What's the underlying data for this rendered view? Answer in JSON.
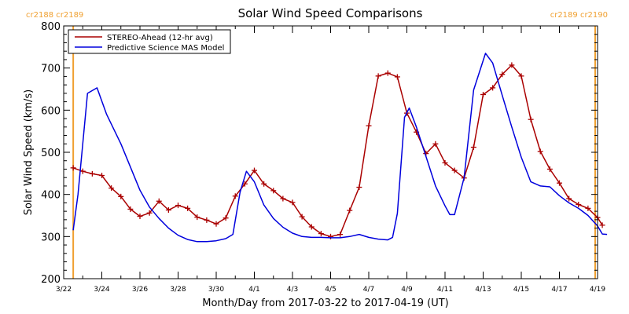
{
  "chart_data": {
    "type": "line",
    "title": "Solar Wind Speed Comparisons",
    "xlabel": "Month/Day from 2017-03-22 to 2017-04-19 (UT)",
    "ylabel": "Solar Wind Speed (km/s)",
    "xlim": [
      "2017-03-22",
      "2017-04-19"
    ],
    "ylim": [
      200,
      800
    ],
    "x_ticks": [
      {
        "label": "3/22",
        "date": "2017-03-22"
      },
      {
        "label": "3/24",
        "date": "2017-03-24"
      },
      {
        "label": "3/26",
        "date": "2017-03-26"
      },
      {
        "label": "3/28",
        "date": "2017-03-28"
      },
      {
        "label": "3/30",
        "date": "2017-03-30"
      },
      {
        "label": "4/1",
        "date": "2017-04-01"
      },
      {
        "label": "4/3",
        "date": "2017-04-03"
      },
      {
        "label": "4/5",
        "date": "2017-04-05"
      },
      {
        "label": "4/7",
        "date": "2017-04-07"
      },
      {
        "label": "4/9",
        "date": "2017-04-09"
      },
      {
        "label": "4/11",
        "date": "2017-04-11"
      },
      {
        "label": "4/13",
        "date": "2017-04-13"
      },
      {
        "label": "4/15",
        "date": "2017-04-15"
      },
      {
        "label": "4/17",
        "date": "2017-04-17"
      },
      {
        "label": "4/19",
        "date": "2017-04-19"
      }
    ],
    "y_ticks": [
      200,
      300,
      400,
      500,
      600,
      700,
      800
    ],
    "carrington_markers": [
      {
        "date": "2017-03-22 12:00",
        "label": "cr2188 cr2189",
        "label_side": "left"
      },
      {
        "date": "2017-04-18 21:00",
        "label": "cr2189 cr2190",
        "label_side": "right"
      }
    ],
    "legend_position": "top-left",
    "colors": {
      "stereo": "#aa0000",
      "model": "#0000dd",
      "carrington": "#f0a030"
    },
    "series": [
      {
        "name": "STEREO-Ahead (12-hr avg)",
        "marker": "plus",
        "points": [
          [
            "2017-03-22 12:00",
            463
          ],
          [
            "2017-03-23 00:00",
            455
          ],
          [
            "2017-03-23 12:00",
            449
          ],
          [
            "2017-03-24 00:00",
            445
          ],
          [
            "2017-03-24 12:00",
            415
          ],
          [
            "2017-03-25 00:00",
            395
          ],
          [
            "2017-03-25 12:00",
            365
          ],
          [
            "2017-03-26 00:00",
            348
          ],
          [
            "2017-03-26 12:00",
            356
          ],
          [
            "2017-03-27 00:00",
            384
          ],
          [
            "2017-03-27 12:00",
            363
          ],
          [
            "2017-03-28 00:00",
            374
          ],
          [
            "2017-03-28 12:00",
            367
          ],
          [
            "2017-03-29 00:00",
            346
          ],
          [
            "2017-03-29 12:00",
            339
          ],
          [
            "2017-03-30 00:00",
            330
          ],
          [
            "2017-03-30 12:00",
            344
          ],
          [
            "2017-03-31 00:00",
            396
          ],
          [
            "2017-03-31 12:00",
            425
          ],
          [
            "2017-04-01 00:00",
            457
          ],
          [
            "2017-04-01 12:00",
            425
          ],
          [
            "2017-04-02 00:00",
            409
          ],
          [
            "2017-04-02 12:00",
            390
          ],
          [
            "2017-04-03 00:00",
            381
          ],
          [
            "2017-04-03 12:00",
            347
          ],
          [
            "2017-04-04 00:00",
            323
          ],
          [
            "2017-04-04 12:00",
            307
          ],
          [
            "2017-04-05 00:00",
            300
          ],
          [
            "2017-04-05 12:00",
            305
          ],
          [
            "2017-04-06 00:00",
            362
          ],
          [
            "2017-04-06 12:00",
            417
          ],
          [
            "2017-04-07 00:00",
            563
          ],
          [
            "2017-04-07 12:00",
            681
          ],
          [
            "2017-04-08 00:00",
            688
          ],
          [
            "2017-04-08 12:00",
            679
          ],
          [
            "2017-04-09 00:00",
            593
          ],
          [
            "2017-04-09 12:00",
            548
          ],
          [
            "2017-04-10 00:00",
            497
          ],
          [
            "2017-04-10 12:00",
            520
          ],
          [
            "2017-04-11 00:00",
            475
          ],
          [
            "2017-04-11 12:00",
            457
          ],
          [
            "2017-04-12 00:00",
            439
          ],
          [
            "2017-04-12 12:00",
            512
          ],
          [
            "2017-04-13 00:00",
            637
          ],
          [
            "2017-04-13 12:00",
            653
          ],
          [
            "2017-04-14 00:00",
            685
          ],
          [
            "2017-04-14 12:00",
            707
          ],
          [
            "2017-04-15 00:00",
            681
          ],
          [
            "2017-04-15 12:00",
            578
          ],
          [
            "2017-04-16 00:00",
            502
          ],
          [
            "2017-04-16 12:00",
            460
          ],
          [
            "2017-04-17 00:00",
            427
          ],
          [
            "2017-04-17 12:00",
            390
          ],
          [
            "2017-04-18 00:00",
            376
          ],
          [
            "2017-04-18 12:00",
            367
          ],
          [
            "2017-04-19 00:00",
            345
          ],
          [
            "2017-04-19 06:00",
            327
          ]
        ]
      },
      {
        "name": "Predictive Science MAS Model",
        "marker": "none",
        "points": [
          [
            "2017-03-22 12:00",
            315
          ],
          [
            "2017-03-22 18:00",
            400
          ],
          [
            "2017-03-23 06:00",
            640
          ],
          [
            "2017-03-23 18:00",
            653
          ],
          [
            "2017-03-24 06:00",
            590
          ],
          [
            "2017-03-25 00:00",
            520
          ],
          [
            "2017-03-25 12:00",
            465
          ],
          [
            "2017-03-26 00:00",
            410
          ],
          [
            "2017-03-26 12:00",
            370
          ],
          [
            "2017-03-27 00:00",
            343
          ],
          [
            "2017-03-27 12:00",
            320
          ],
          [
            "2017-03-28 00:00",
            303
          ],
          [
            "2017-03-28 12:00",
            293
          ],
          [
            "2017-03-29 00:00",
            288
          ],
          [
            "2017-03-29 12:00",
            288
          ],
          [
            "2017-03-30 00:00",
            290
          ],
          [
            "2017-03-30 12:00",
            295
          ],
          [
            "2017-03-30 21:00",
            305
          ],
          [
            "2017-03-31 06:00",
            405
          ],
          [
            "2017-03-31 14:00",
            455
          ],
          [
            "2017-04-01 00:00",
            430
          ],
          [
            "2017-04-01 12:00",
            375
          ],
          [
            "2017-04-02 00:00",
            343
          ],
          [
            "2017-04-02 12:00",
            322
          ],
          [
            "2017-04-03 00:00",
            308
          ],
          [
            "2017-04-03 12:00",
            300
          ],
          [
            "2017-04-04 00:00",
            298
          ],
          [
            "2017-04-04 12:00",
            298
          ],
          [
            "2017-04-05 00:00",
            297
          ],
          [
            "2017-04-05 12:00",
            297
          ],
          [
            "2017-04-06 00:00",
            300
          ],
          [
            "2017-04-06 12:00",
            305
          ],
          [
            "2017-04-07 00:00",
            298
          ],
          [
            "2017-04-07 12:00",
            294
          ],
          [
            "2017-04-08 00:00",
            292
          ],
          [
            "2017-04-08 06:00",
            298
          ],
          [
            "2017-04-08 12:00",
            355
          ],
          [
            "2017-04-08 21:00",
            583
          ],
          [
            "2017-04-09 03:00",
            605
          ],
          [
            "2017-04-09 12:00",
            560
          ],
          [
            "2017-04-10 00:00",
            490
          ],
          [
            "2017-04-10 12:00",
            420
          ],
          [
            "2017-04-11 00:00",
            373
          ],
          [
            "2017-04-11 06:00",
            352
          ],
          [
            "2017-04-11 12:00",
            352
          ],
          [
            "2017-04-12 00:00",
            440
          ],
          [
            "2017-04-12 12:00",
            648
          ],
          [
            "2017-04-13 03:00",
            735
          ],
          [
            "2017-04-13 12:00",
            712
          ],
          [
            "2017-04-14 00:00",
            635
          ],
          [
            "2017-04-14 12:00",
            560
          ],
          [
            "2017-04-15 00:00",
            488
          ],
          [
            "2017-04-15 12:00",
            430
          ],
          [
            "2017-04-16 00:00",
            420
          ],
          [
            "2017-04-16 12:00",
            418
          ],
          [
            "2017-04-17 00:00",
            397
          ],
          [
            "2017-04-17 12:00",
            380
          ],
          [
            "2017-04-18 00:00",
            367
          ],
          [
            "2017-04-18 12:00",
            350
          ],
          [
            "2017-04-19 00:00",
            325
          ],
          [
            "2017-04-19 06:00",
            306
          ],
          [
            "2017-04-19 12:00",
            305
          ]
        ]
      }
    ]
  }
}
